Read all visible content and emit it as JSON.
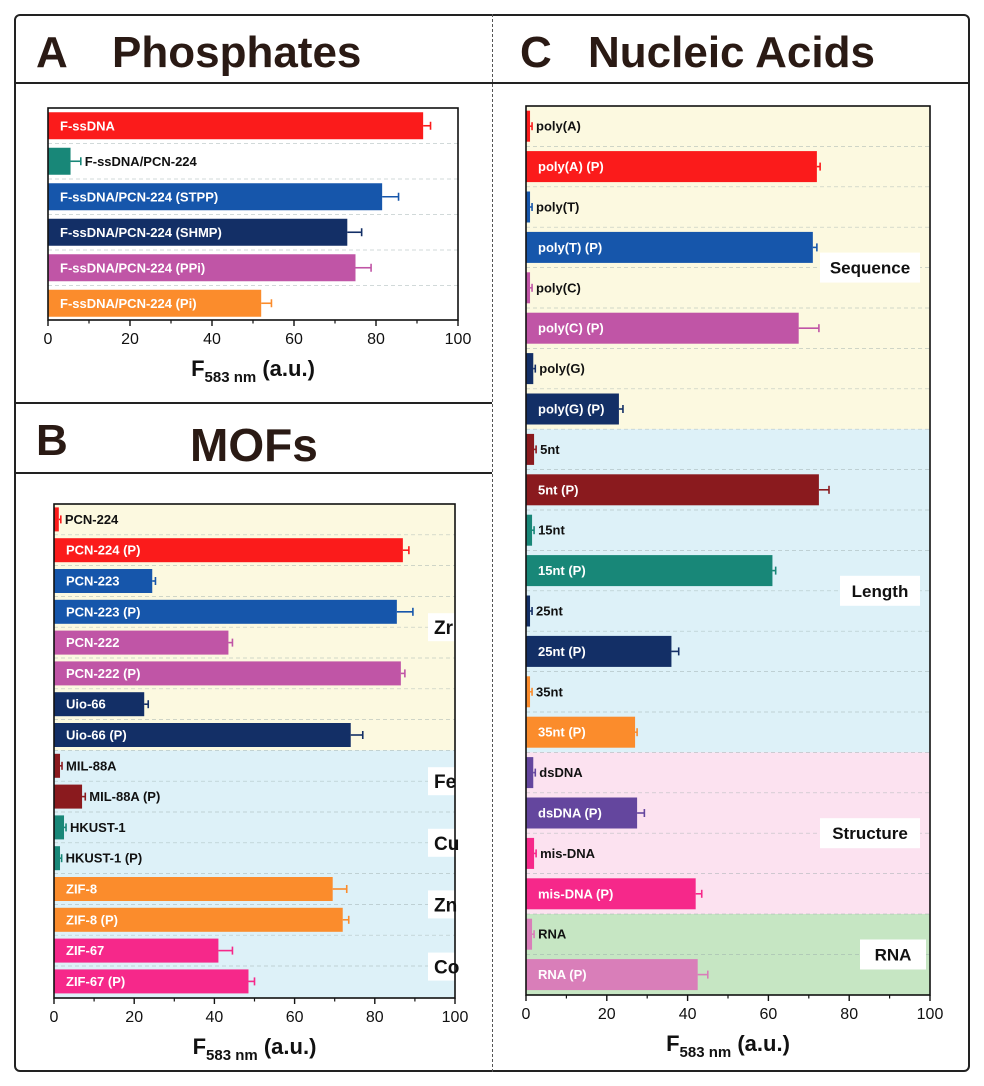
{
  "panels": {
    "A": {
      "letter": "A",
      "title": "Phosphates"
    },
    "B": {
      "letter": "B",
      "title": "MOFs"
    },
    "C": {
      "letter": "C",
      "title": "Nucleic Acids"
    }
  },
  "colors": {
    "red": "#fb1b1b",
    "teal": "#188778",
    "blue": "#1656ab",
    "navy": "#132f66",
    "violet": "#c055a6",
    "orange": "#fb8c2c",
    "maroon": "#8a1a1e",
    "pink": "#f6288a",
    "purple": "#64469e",
    "lightpink": "#d97eb9",
    "bg_yellow": "#fcf9e0",
    "bg_blue": "#ddf1f8",
    "bg_pink": "#fce2f0",
    "bg_green": "#c6e6c3"
  },
  "chart_data": [
    {
      "panel": "A",
      "type": "bar",
      "orientation": "horizontal",
      "title": "Phosphates",
      "xlabel_main": "F",
      "xlabel_sub": "583 nm",
      "xlabel_unit": " (a.u.)",
      "xlim": [
        0,
        100
      ],
      "xticks": [
        "0",
        "20",
        "40",
        "60",
        "80",
        "100"
      ],
      "bars": [
        {
          "label": "F-ssDNA",
          "value": 91.5,
          "error": 1.8,
          "color": "#fb1b1b"
        },
        {
          "label": "F-ssDNA/PCN-224",
          "value": 5.5,
          "error": 2.5,
          "color": "#188778"
        },
        {
          "label": "F-ssDNA/PCN-224 (STPP)",
          "value": 81.5,
          "error": 4,
          "color": "#1656ab"
        },
        {
          "label": "F-ssDNA/PCN-224 (SHMP)",
          "value": 73,
          "error": 3.5,
          "color": "#132f66"
        },
        {
          "label": "F-ssDNA/PCN-224 (PPi)",
          "value": 75,
          "error": 3.8,
          "color": "#c055a6"
        },
        {
          "label": "F-ssDNA/PCN-224 (Pi)",
          "value": 52,
          "error": 2.5,
          "color": "#fb8c2c"
        }
      ]
    },
    {
      "panel": "B",
      "type": "bar",
      "orientation": "horizontal",
      "title": "MOFs",
      "xlabel_main": "F",
      "xlabel_sub": "583 nm",
      "xlabel_unit": " (a.u.)",
      "xlim": [
        0,
        100
      ],
      "xticks": [
        "0",
        "20",
        "40",
        "60",
        "80",
        "100"
      ],
      "groups": [
        {
          "label": "Zr",
          "start": 0,
          "end": 8,
          "color": "#fcf9e0"
        },
        {
          "label": "Fe",
          "start": 8,
          "end": 10,
          "color": "#ddf1f8"
        },
        {
          "label": "Cu",
          "start": 10,
          "end": 12,
          "color": "#ddf1f8"
        },
        {
          "label": "Zn",
          "start": 12,
          "end": 14,
          "color": "#ddf1f8"
        },
        {
          "label": "Co",
          "start": 14,
          "end": 16,
          "color": "#ddf1f8"
        }
      ],
      "bars": [
        {
          "label": "PCN-224",
          "value": 1.2,
          "error": 0.5,
          "color": "#fb1b1b"
        },
        {
          "label": "PCN-224 (P)",
          "value": 87,
          "error": 1.5,
          "color": "#fb1b1b"
        },
        {
          "label": "PCN-223",
          "value": 24.5,
          "error": 0.8,
          "color": "#1656ab"
        },
        {
          "label": "PCN-223 (P)",
          "value": 85.5,
          "error": 4,
          "color": "#1656ab"
        },
        {
          "label": "PCN-222",
          "value": 43.5,
          "error": 1,
          "color": "#c055a6"
        },
        {
          "label": "PCN-222 (P)",
          "value": 86.5,
          "error": 1,
          "color": "#c055a6"
        },
        {
          "label": "Uio-66",
          "value": 22.5,
          "error": 1,
          "color": "#132f66"
        },
        {
          "label": "Uio-66 (P)",
          "value": 74,
          "error": 3,
          "color": "#132f66"
        },
        {
          "label": "MIL-88A",
          "value": 1.5,
          "error": 0.5,
          "color": "#8a1a1e"
        },
        {
          "label": "MIL-88A (P)",
          "value": 7,
          "error": 0.8,
          "color": "#8a1a1e"
        },
        {
          "label": "HKUST-1",
          "value": 2.5,
          "error": 0.5,
          "color": "#188778"
        },
        {
          "label": "HKUST-1 (P)",
          "value": 1.5,
          "error": 0.4,
          "color": "#188778"
        },
        {
          "label": "ZIF-8",
          "value": 69.5,
          "error": 3.5,
          "color": "#fb8c2c"
        },
        {
          "label": "ZIF-8 (P)",
          "value": 72,
          "error": 1.5,
          "color": "#fb8c2c"
        },
        {
          "label": "ZIF-67",
          "value": 41,
          "error": 3.5,
          "color": "#f6288a"
        },
        {
          "label": "ZIF-67 (P)",
          "value": 48.5,
          "error": 1.5,
          "color": "#f6288a"
        }
      ]
    },
    {
      "panel": "C",
      "type": "bar",
      "orientation": "horizontal",
      "title": "Nucleic Acids",
      "xlabel_main": "F",
      "xlabel_sub": "583 nm",
      "xlabel_unit": " (a.u.)",
      "xlim": [
        0,
        100
      ],
      "xticks": [
        "0",
        "20",
        "40",
        "60",
        "80",
        "100"
      ],
      "groups": [
        {
          "label": "Sequence",
          "start": 0,
          "end": 8,
          "color": "#fcf9e0"
        },
        {
          "label": "Length",
          "start": 8,
          "end": 16,
          "color": "#ddf1f8"
        },
        {
          "label": "Structure",
          "start": 16,
          "end": 20,
          "color": "#fce2f0"
        },
        {
          "label": "RNA",
          "start": 20,
          "end": 22,
          "color": "#c6e6c3"
        }
      ],
      "bars": [
        {
          "label": "poly(A)",
          "value": 1,
          "error": 0.5,
          "color": "#fb1b1b"
        },
        {
          "label": "poly(A) (P)",
          "value": 72,
          "error": 0.8,
          "color": "#fb1b1b"
        },
        {
          "label": "poly(T)",
          "value": 1,
          "error": 0.5,
          "color": "#1656ab"
        },
        {
          "label": "poly(T) (P)",
          "value": 71,
          "error": 1,
          "color": "#1656ab"
        },
        {
          "label": "poly(C)",
          "value": 1,
          "error": 0.5,
          "color": "#c055a6"
        },
        {
          "label": "poly(C) (P)",
          "value": 67.5,
          "error": 5,
          "color": "#c055a6"
        },
        {
          "label": "poly(G)",
          "value": 1.8,
          "error": 0.5,
          "color": "#132f66"
        },
        {
          "label": "poly(G) (P)",
          "value": 23,
          "error": 1,
          "color": "#132f66"
        },
        {
          "label": "5nt",
          "value": 2,
          "error": 0.5,
          "color": "#8a1a1e"
        },
        {
          "label": "5nt (P)",
          "value": 72.5,
          "error": 2.5,
          "color": "#8a1a1e"
        },
        {
          "label": "15nt",
          "value": 1.5,
          "error": 0.5,
          "color": "#188778"
        },
        {
          "label": "15nt (P)",
          "value": 61,
          "error": 0.8,
          "color": "#188778"
        },
        {
          "label": "25nt",
          "value": 1,
          "error": 0.5,
          "color": "#132f66"
        },
        {
          "label": "25nt (P)",
          "value": 36,
          "error": 1.8,
          "color": "#132f66"
        },
        {
          "label": "35nt",
          "value": 1,
          "error": 0.5,
          "color": "#fb8c2c"
        },
        {
          "label": "35nt (P)",
          "value": 27,
          "error": 0.5,
          "color": "#fb8c2c"
        },
        {
          "label": "dsDNA",
          "value": 1.8,
          "error": 0.5,
          "color": "#64469e"
        },
        {
          "label": "dsDNA (P)",
          "value": 27.5,
          "error": 1.8,
          "color": "#64469e"
        },
        {
          "label": "mis-DNA",
          "value": 2,
          "error": 0.5,
          "color": "#f6288a"
        },
        {
          "label": "mis-DNA (P)",
          "value": 42,
          "error": 1.5,
          "color": "#f6288a"
        },
        {
          "label": "RNA",
          "value": 1.5,
          "error": 0.5,
          "color": "#d97eb9"
        },
        {
          "label": "RNA (P)",
          "value": 42.5,
          "error": 2.5,
          "color": "#d97eb9"
        }
      ]
    }
  ]
}
